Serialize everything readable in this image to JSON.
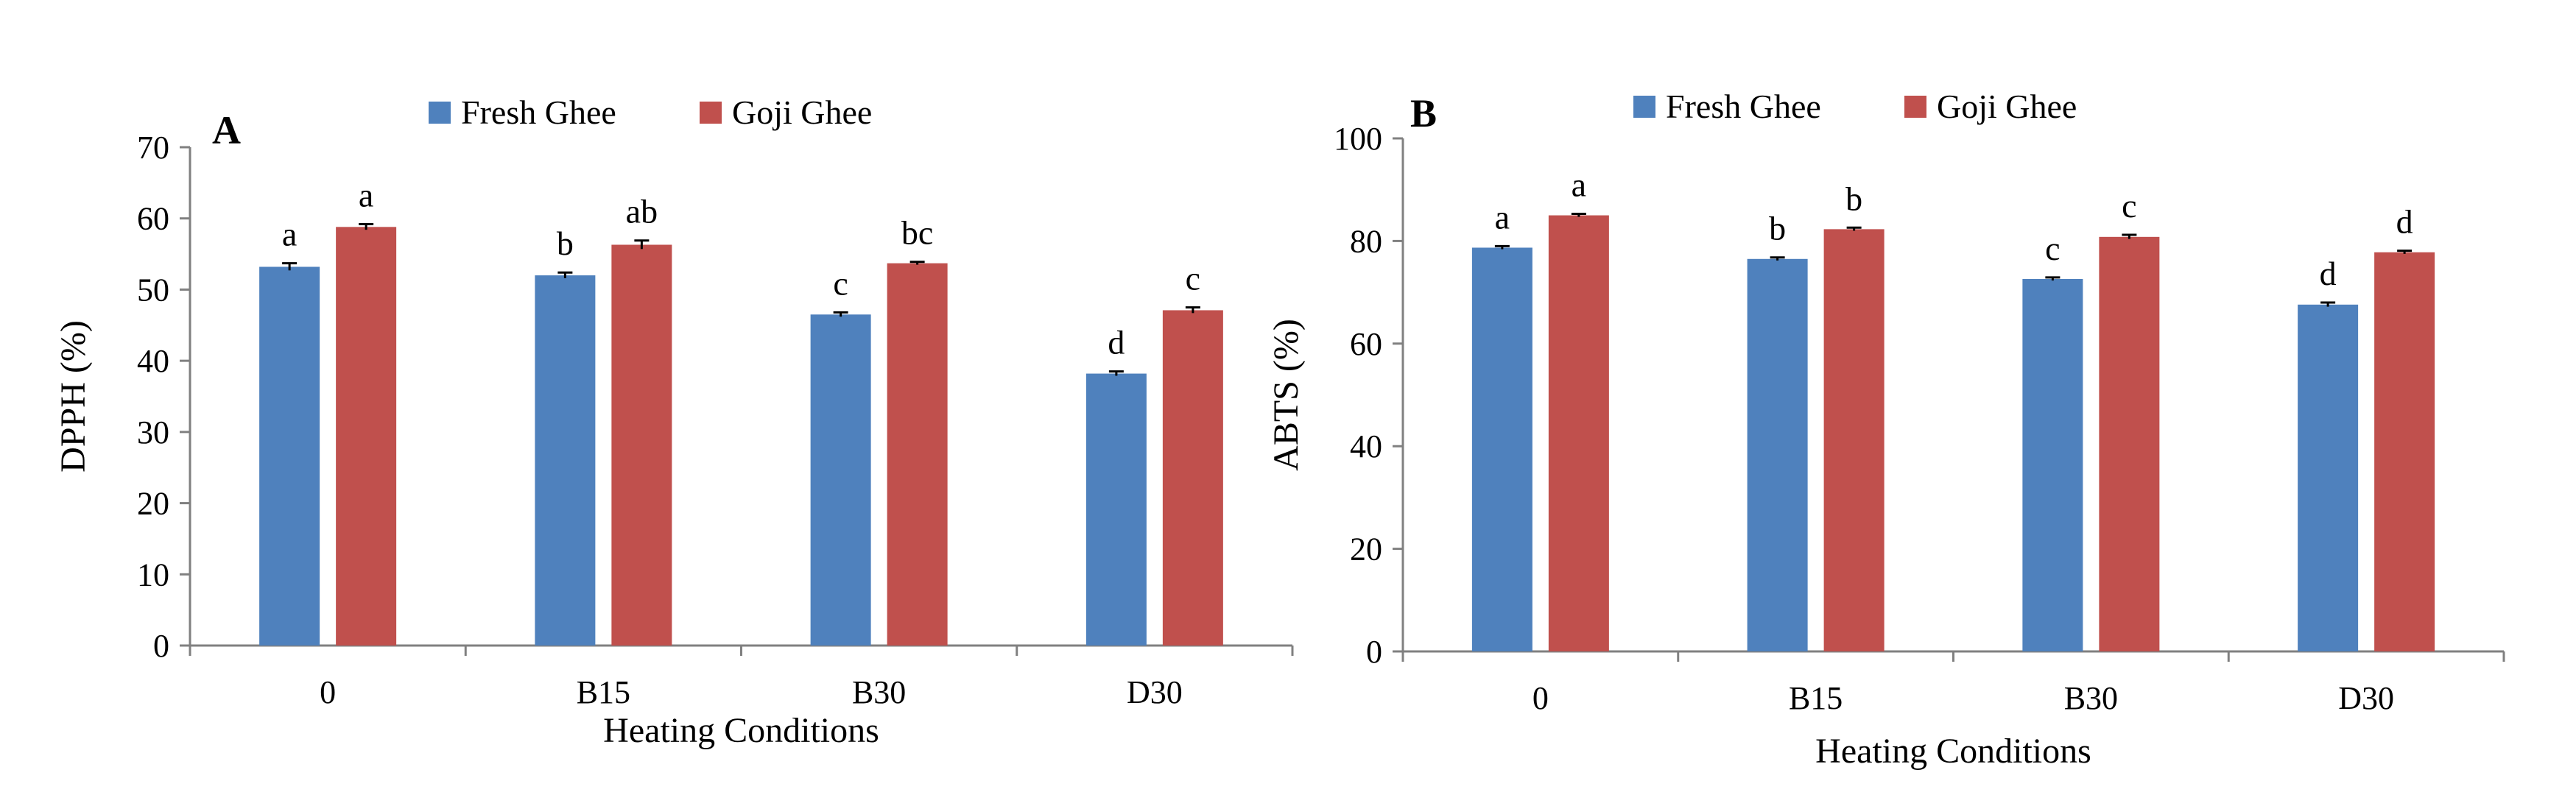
{
  "chart_data": [
    {
      "type": "bar",
      "panel_label": "A",
      "title": "",
      "xlabel": "Heating Conditions",
      "ylabel": "DPPH (%)",
      "categories": [
        "0",
        "B15",
        "B30",
        "D30"
      ],
      "ylim": [
        0,
        70
      ],
      "yticks": [
        0,
        10,
        20,
        30,
        40,
        50,
        60,
        70
      ],
      "ytick_labels": [
        "0",
        "10",
        "20",
        "30",
        "40",
        "50",
        "60",
        "70"
      ],
      "legend_position": "top-center",
      "grid": false,
      "series": [
        {
          "name": "Fresh Ghee",
          "color": "#4f81bd",
          "values": [
            53.2,
            52.0,
            46.5,
            38.2
          ],
          "errors": [
            0.5,
            0.4,
            0.3,
            0.3
          ],
          "letters": [
            "a",
            "b",
            "c",
            "d"
          ]
        },
        {
          "name": "Goji Ghee",
          "color": "#c0504d",
          "values": [
            58.8,
            56.3,
            53.7,
            47.1
          ],
          "errors": [
            0.4,
            0.6,
            0.2,
            0.4
          ],
          "letters": [
            "a",
            "ab",
            "bc",
            "c"
          ]
        }
      ]
    },
    {
      "type": "bar",
      "panel_label": "B",
      "title": "",
      "xlabel": "Heating Conditions",
      "ylabel": "ABTS (%)",
      "categories": [
        "0",
        "B15",
        "B30",
        "D30"
      ],
      "ylim": [
        0,
        100
      ],
      "yticks": [
        0,
        20,
        40,
        60,
        80,
        100
      ],
      "ytick_labels": [
        "0",
        "20",
        "40",
        "60",
        "80",
        "100"
      ],
      "legend_position": "top-center",
      "grid": false,
      "series": [
        {
          "name": "Fresh Ghee",
          "color": "#4f81bd",
          "values": [
            78.7,
            76.5,
            72.6,
            67.6
          ],
          "errors": [
            0.3,
            0.3,
            0.3,
            0.4
          ],
          "letters": [
            "a",
            "b",
            "c",
            "d"
          ]
        },
        {
          "name": "Goji Ghee",
          "color": "#c0504d",
          "values": [
            85.0,
            82.3,
            80.8,
            77.8
          ],
          "errors": [
            0.3,
            0.3,
            0.4,
            0.3
          ],
          "letters": [
            "a",
            "b",
            "c",
            "d"
          ]
        }
      ]
    }
  ]
}
